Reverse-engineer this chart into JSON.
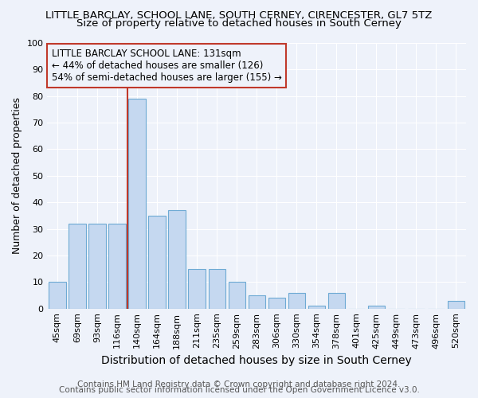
{
  "title": "LITTLE BARCLAY, SCHOOL LANE, SOUTH CERNEY, CIRENCESTER, GL7 5TZ",
  "subtitle": "Size of property relative to detached houses in South Cerney",
  "xlabel": "Distribution of detached houses by size in South Cerney",
  "ylabel": "Number of detached properties",
  "categories": [
    "45sqm",
    "69sqm",
    "93sqm",
    "116sqm",
    "140sqm",
    "164sqm",
    "188sqm",
    "211sqm",
    "235sqm",
    "259sqm",
    "283sqm",
    "306sqm",
    "330sqm",
    "354sqm",
    "378sqm",
    "401sqm",
    "425sqm",
    "449sqm",
    "473sqm",
    "496sqm",
    "520sqm"
  ],
  "values": [
    10,
    32,
    32,
    32,
    79,
    35,
    37,
    15,
    15,
    10,
    5,
    4,
    6,
    1,
    6,
    0,
    1,
    0,
    0,
    0,
    3
  ],
  "bar_color": "#c5d8f0",
  "bar_edge_color": "#6eaad4",
  "background_color": "#eef2fa",
  "grid_color": "#ffffff",
  "vline_color": "#c0392b",
  "vline_xindex": 3.5,
  "ylim": [
    0,
    100
  ],
  "yticks": [
    0,
    10,
    20,
    30,
    40,
    50,
    60,
    70,
    80,
    90,
    100
  ],
  "annotation_text": "LITTLE BARCLAY SCHOOL LANE: 131sqm\n← 44% of detached houses are smaller (126)\n54% of semi-detached houses are larger (155) →",
  "annotation_box_color": "#c0392b",
  "footnote_line1": "Contains HM Land Registry data © Crown copyright and database right 2024.",
  "footnote_line2": "Contains public sector information licensed under the Open Government Licence v3.0.",
  "title_fontsize": 9.5,
  "subtitle_fontsize": 9.5,
  "xlabel_fontsize": 10,
  "ylabel_fontsize": 9,
  "tick_fontsize": 8,
  "annotation_fontsize": 8.5,
  "footnote_fontsize": 7.5
}
